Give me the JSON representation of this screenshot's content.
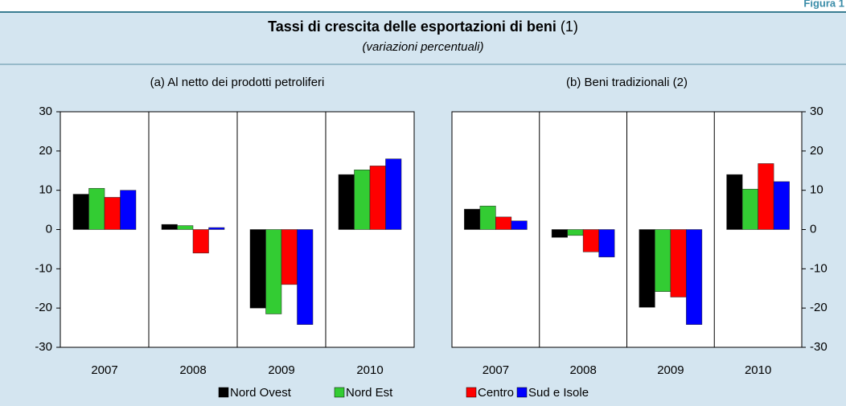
{
  "header": {
    "figure_label": "Figura 1",
    "title": "Tassi di crescita delle esportazioni di beni",
    "title_note": "(1)",
    "subtitle": "(variazioni percentuali)"
  },
  "chart_data": [
    {
      "type": "bar",
      "title": "(a) Al netto dei prodotti petroliferi",
      "y_axis_side": "left",
      "categories": [
        "2007",
        "2008",
        "2009",
        "2010"
      ],
      "series": [
        {
          "name": "Nord Ovest",
          "color": "#000000",
          "values": [
            9,
            1.3,
            -20,
            14
          ]
        },
        {
          "name": "Nord Est",
          "color": "#33cc33",
          "values": [
            10.5,
            1,
            -21.5,
            15.2
          ]
        },
        {
          "name": "Centro",
          "color": "#ff0000",
          "values": [
            8.2,
            -6,
            -14,
            16.2
          ]
        },
        {
          "name": "Sud e Isole",
          "color": "#0000ff",
          "values": [
            10,
            0.5,
            -24.2,
            18
          ]
        }
      ],
      "ylim": [
        -30,
        30
      ],
      "yticks": [
        -30,
        -20,
        -10,
        0,
        10,
        20,
        30
      ]
    },
    {
      "type": "bar",
      "title": "(b) Beni tradizionali (2)",
      "y_axis_side": "right",
      "categories": [
        "2007",
        "2008",
        "2009",
        "2010"
      ],
      "series": [
        {
          "name": "Nord Ovest",
          "color": "#000000",
          "values": [
            5.2,
            -2,
            -19.8,
            14
          ]
        },
        {
          "name": "Nord Est",
          "color": "#33cc33",
          "values": [
            6,
            -1.5,
            -15.8,
            10.3
          ]
        },
        {
          "name": "Centro",
          "color": "#ff0000",
          "values": [
            3.2,
            -5.7,
            -17.2,
            16.8
          ]
        },
        {
          "name": "Sud e Isole",
          "color": "#0000ff",
          "values": [
            2.2,
            -7,
            -24.2,
            12.2
          ]
        }
      ],
      "ylim": [
        -30,
        30
      ],
      "yticks": [
        -30,
        -20,
        -10,
        0,
        10,
        20,
        30
      ]
    }
  ]
}
